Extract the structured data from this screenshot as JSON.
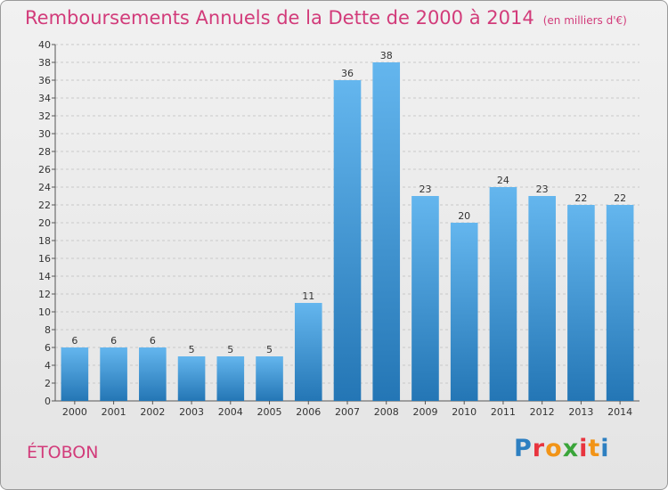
{
  "title": "Remboursements Annuels de la Dette de 2000 à 2014",
  "subtitle": "(en milliers d'€)",
  "commune": "ÉTOBON",
  "logo": {
    "text": "Proxiti",
    "letter_colors": [
      "#2d7fc1",
      "#e8343e",
      "#f29417",
      "#3aa53a",
      "#e8343e",
      "#f29417",
      "#2d7fc1"
    ]
  },
  "colors": {
    "title": "#d23b7a",
    "bar_top": "#64b6ee",
    "bar_bottom": "#2476b5"
  },
  "chart_data": {
    "type": "bar",
    "title": "Remboursements Annuels de la Dette de 2000 à 2014",
    "subtitle": "(en milliers d'€)",
    "categories": [
      "2000",
      "2001",
      "2002",
      "2003",
      "2004",
      "2005",
      "2006",
      "2007",
      "2008",
      "2009",
      "2010",
      "2011",
      "2012",
      "2013",
      "2014"
    ],
    "values": [
      6,
      6,
      6,
      5,
      5,
      5,
      11,
      36,
      38,
      23,
      20,
      24,
      23,
      22,
      22
    ],
    "ylim": [
      0,
      40
    ],
    "yticks": [
      0,
      2,
      4,
      6,
      8,
      10,
      12,
      14,
      16,
      18,
      20,
      22,
      24,
      26,
      28,
      30,
      32,
      34,
      36,
      38,
      40
    ],
    "grid": true,
    "data_labels": true
  }
}
